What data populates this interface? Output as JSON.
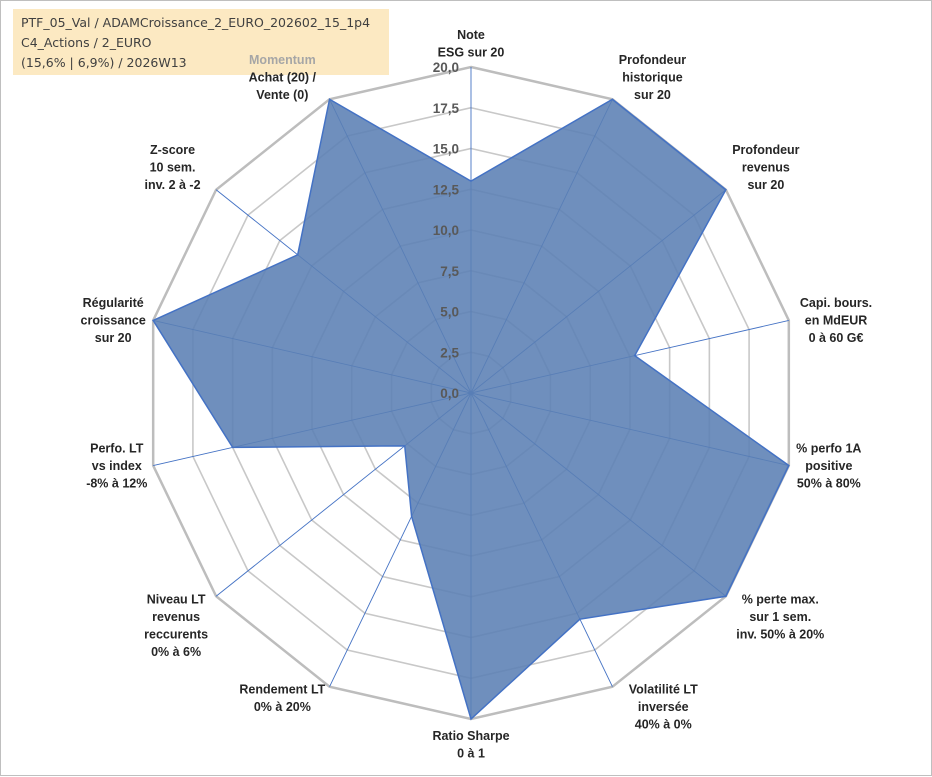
{
  "header": {
    "line1": "PTF_05_Val / ADAMCroissance_2_EURO_202602_15_1p4",
    "line2": "C4_Actions / 2_EURO",
    "line3": "(15,6% | 6,9%) / 2026W13"
  },
  "colors": {
    "fill": "#5b80b4",
    "stroke": "#4472c4",
    "grid": "#c8c8c8",
    "outer_grid": "#bdbdbd",
    "spoke": "#4472c4",
    "header_bg": "#fce9c2",
    "momentum_label": "#a6a6a6"
  },
  "chart_data": {
    "type": "radar",
    "rmin": 0,
    "rmax": 20,
    "tick_step": 2.5,
    "ticks": [
      "0,0",
      "2,5",
      "5,0",
      "7,5",
      "10,0",
      "12,5",
      "15,0",
      "17,5",
      "20,0"
    ],
    "axes": [
      {
        "label": [
          "Note",
          "ESG sur 20"
        ]
      },
      {
        "label": [
          "Profondeur",
          "historique",
          "sur 20"
        ]
      },
      {
        "label": [
          "Profondeur",
          "revenus",
          "sur 20"
        ]
      },
      {
        "label": [
          "Capi. bours.",
          "en MdEUR",
          "0 à 60 G€"
        ]
      },
      {
        "label": [
          "% perfo 1A",
          "positive",
          "50% à 80%"
        ]
      },
      {
        "label": [
          "% perte max.",
          "sur 1 sem.",
          "inv. 50% à 20%"
        ]
      },
      {
        "label": [
          "Volatilité LT",
          "inversée",
          "40% à 0%"
        ]
      },
      {
        "label": [
          "Ratio Sharpe",
          "0 à 1"
        ]
      },
      {
        "label": [
          "Rendement LT",
          "0% à 20%"
        ]
      },
      {
        "label": [
          "Niveau LT",
          "revenus",
          "reccurents",
          "0% à 6%"
        ]
      },
      {
        "label": [
          "Perfo. LT",
          "vs index",
          "-8% à 12%"
        ]
      },
      {
        "label": [
          "Régularité",
          "croissance",
          "sur 20"
        ]
      },
      {
        "label": [
          "Z-score",
          "10 sem.",
          "inv. 2 à -2"
        ]
      },
      {
        "label": [
          "Momentum",
          "Achat (20) /",
          "Vente (0)"
        ]
      }
    ],
    "series": [
      {
        "values": [
          13.0,
          20.0,
          20.0,
          10.3,
          20.0,
          20.0,
          15.4,
          20.0,
          8.4,
          5.2,
          15.0,
          20.0,
          13.6,
          20.0
        ]
      }
    ]
  }
}
